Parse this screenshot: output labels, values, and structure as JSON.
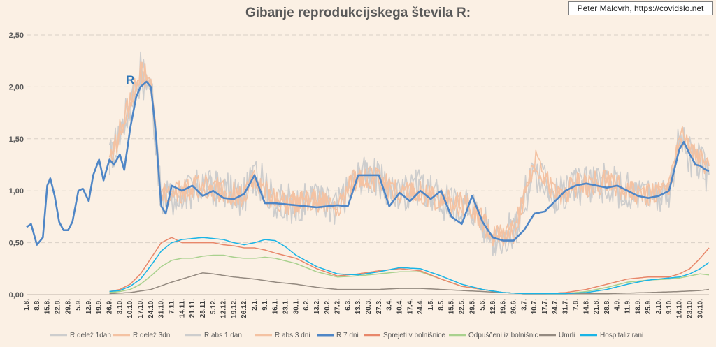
{
  "title": "Gibanje reprodukcijskega števila R:",
  "credit": "Peter Malovrh, https://covidslo.net",
  "annotation": "R",
  "colors": {
    "background": "#fbf0e4",
    "grid": "#d9d0c6",
    "r_delez_1dan": "#cdcdcd",
    "r_delez_3dni": "#f4c2a2",
    "r_abs_1dan": "#cdcdcd",
    "r_abs_3dni": "#f4c2a2",
    "r_7dni": "#4f86c6",
    "sprejeti": "#e8876a",
    "odpusceni": "#a9d18e",
    "umrli": "#948a80",
    "hospitalizirani": "#19b4e6"
  },
  "chart_data": {
    "type": "line",
    "title": "Gibanje reprodukcijskega števila R:",
    "ylim": [
      0,
      2.5
    ],
    "y_ticks": [
      "0,00",
      "0,50",
      "1,00",
      "1,50",
      "2,00",
      "2,50"
    ],
    "x_start": "2020-08-01",
    "x_end": "2021-11-05",
    "x_tick_labels": [
      "1.8.",
      "8.8.",
      "15.8.",
      "22.8.",
      "29.8.",
      "5.9.",
      "12.9.",
      "19.9.",
      "26.9.",
      "3.10.",
      "10.10.",
      "17.10.",
      "24.10.",
      "31.10.",
      "7.11.",
      "14.11.",
      "21.11.",
      "28.11.",
      "5.12.",
      "12.12.",
      "19.12.",
      "26.12.",
      "2.1.",
      "9.1.",
      "16.1.",
      "23.1.",
      "30.1.",
      "6.2.",
      "13.2.",
      "20.2.",
      "27.2.",
      "6.3.",
      "13.3.",
      "20.3.",
      "27.3.",
      "3.4.",
      "10.4.",
      "17.4.",
      "24.4.",
      "1.5.",
      "8.5.",
      "15.5.",
      "22.5.",
      "29.5.",
      "5.6.",
      "12.6.",
      "19.6.",
      "26.6.",
      "3.7.",
      "10.7.",
      "17.7.",
      "24.7.",
      "31.7.",
      "7.8.",
      "14.8.",
      "21.8.",
      "28.8.",
      "4.9.",
      "11.9.",
      "18.9.",
      "25.9.",
      "2.10.",
      "9.10.",
      "16.10.",
      "23.10.",
      "30.10."
    ],
    "grid": true,
    "legend_position": "bottom",
    "series": [
      {
        "name": "R delež 1dan",
        "key": "r_delez_1dan",
        "noisy": true,
        "amp": 0.18,
        "start": "2020-09-26",
        "x": [
          "2020-09-26",
          "2020-10-10",
          "2020-10-17",
          "2020-10-24",
          "2020-10-31",
          "2020-11-28",
          "2020-12-26",
          "2021-01-02",
          "2021-01-16",
          "2021-01-30",
          "2021-02-13",
          "2021-02-27",
          "2021-03-13",
          "2021-03-27",
          "2021-04-10",
          "2021-04-24",
          "2021-05-08",
          "2021-05-29",
          "2021-06-12",
          "2021-06-26",
          "2021-07-10",
          "2021-07-24",
          "2021-08-07",
          "2021-08-28",
          "2021-09-11",
          "2021-09-25",
          "2021-10-09",
          "2021-10-16",
          "2021-10-23",
          "2021-10-30",
          "2021-11-05"
        ],
        "y": [
          1.3,
          1.85,
          2.2,
          2.0,
          0.9,
          1.05,
          0.95,
          1.15,
          0.9,
          0.88,
          0.92,
          0.85,
          1.15,
          1.1,
          0.95,
          1.05,
          0.9,
          0.85,
          0.55,
          0.6,
          1.2,
          0.95,
          1.05,
          1.08,
          1.0,
          0.95,
          1.0,
          1.5,
          1.35,
          1.3,
          1.1
        ]
      },
      {
        "name": "R delež 3dni",
        "key": "r_delez_3dni",
        "noisy": true,
        "amp": 0.12,
        "start": "2020-09-26",
        "x": [
          "2020-09-26",
          "2020-10-10",
          "2020-10-17",
          "2020-10-24",
          "2020-10-31",
          "2020-11-28",
          "2020-12-26",
          "2021-01-02",
          "2021-01-16",
          "2021-01-30",
          "2021-02-13",
          "2021-02-27",
          "2021-03-13",
          "2021-03-27",
          "2021-04-10",
          "2021-04-24",
          "2021-05-08",
          "2021-05-29",
          "2021-06-12",
          "2021-06-26",
          "2021-07-10",
          "2021-07-24",
          "2021-08-07",
          "2021-08-28",
          "2021-09-11",
          "2021-09-25",
          "2021-10-09",
          "2021-10-16",
          "2021-10-23",
          "2021-10-30",
          "2021-11-05"
        ],
        "y": [
          1.3,
          1.85,
          2.2,
          2.05,
          0.95,
          1.05,
          0.95,
          1.1,
          0.9,
          0.88,
          0.9,
          0.85,
          1.15,
          1.1,
          0.95,
          1.0,
          0.9,
          0.85,
          0.55,
          0.6,
          1.3,
          0.95,
          1.05,
          1.08,
          1.0,
          0.95,
          1.0,
          1.55,
          1.4,
          1.3,
          1.2
        ]
      },
      {
        "name": "R abs 1 dan",
        "key": "r_abs_1dan",
        "noisy": true,
        "amp": 0.2,
        "start": "2020-09-26",
        "x": [
          "2020-09-26",
          "2020-10-10",
          "2020-10-17",
          "2020-10-24",
          "2020-10-31",
          "2020-11-28",
          "2020-12-26",
          "2021-01-02",
          "2021-01-16",
          "2021-01-30",
          "2021-02-13",
          "2021-02-27",
          "2021-03-13",
          "2021-03-27",
          "2021-04-10",
          "2021-04-24",
          "2021-05-08",
          "2021-05-29",
          "2021-06-12",
          "2021-06-26",
          "2021-07-10",
          "2021-07-24",
          "2021-08-07",
          "2021-08-28",
          "2021-09-11",
          "2021-09-25",
          "2021-10-09",
          "2021-10-16",
          "2021-10-23",
          "2021-10-30",
          "2021-11-05"
        ],
        "y": [
          1.3,
          1.8,
          2.1,
          2.0,
          0.9,
          1.05,
          0.95,
          1.2,
          0.9,
          0.88,
          0.92,
          0.85,
          1.15,
          1.1,
          0.95,
          1.05,
          0.9,
          0.85,
          0.55,
          0.6,
          1.25,
          0.95,
          1.05,
          1.08,
          1.0,
          0.95,
          1.0,
          1.45,
          1.3,
          1.3,
          1.1
        ]
      },
      {
        "name": "R abs 3 dni",
        "key": "r_abs_3dni",
        "noisy": true,
        "amp": 0.12,
        "start": "2020-09-26",
        "x": [
          "2020-09-26",
          "2020-10-10",
          "2020-10-17",
          "2020-10-24",
          "2020-10-31",
          "2020-11-28",
          "2020-12-26",
          "2021-01-02",
          "2021-01-16",
          "2021-01-30",
          "2021-02-13",
          "2021-02-27",
          "2021-03-13",
          "2021-03-27",
          "2021-04-10",
          "2021-04-24",
          "2021-05-08",
          "2021-05-29",
          "2021-06-12",
          "2021-06-26",
          "2021-07-10",
          "2021-07-24",
          "2021-08-07",
          "2021-08-28",
          "2021-09-11",
          "2021-09-25",
          "2021-10-09",
          "2021-10-16",
          "2021-10-23",
          "2021-10-30",
          "2021-11-05"
        ],
        "y": [
          1.3,
          1.8,
          2.15,
          2.0,
          0.95,
          1.05,
          0.95,
          1.1,
          0.9,
          0.88,
          0.9,
          0.85,
          1.15,
          1.1,
          0.95,
          1.0,
          0.9,
          0.85,
          0.55,
          0.6,
          1.3,
          0.95,
          1.05,
          1.08,
          1.0,
          0.95,
          1.0,
          1.5,
          1.4,
          1.3,
          1.2
        ]
      },
      {
        "name": "R 7 dni",
        "key": "r_7dni",
        "noisy": false,
        "x": [
          "2020-08-01",
          "2020-08-04",
          "2020-08-08",
          "2020-08-12",
          "2020-08-15",
          "2020-08-17",
          "2020-08-20",
          "2020-08-23",
          "2020-08-26",
          "2020-08-29",
          "2020-09-01",
          "2020-09-05",
          "2020-09-08",
          "2020-09-12",
          "2020-09-15",
          "2020-09-19",
          "2020-09-22",
          "2020-09-26",
          "2020-09-29",
          "2020-10-03",
          "2020-10-06",
          "2020-10-10",
          "2020-10-14",
          "2020-10-17",
          "2020-10-21",
          "2020-10-24",
          "2020-10-27",
          "2020-10-31",
          "2020-11-03",
          "2020-11-07",
          "2020-11-14",
          "2020-11-21",
          "2020-11-28",
          "2020-12-05",
          "2020-12-12",
          "2020-12-19",
          "2020-12-26",
          "2021-01-02",
          "2021-01-09",
          "2021-01-16",
          "2021-01-30",
          "2021-02-13",
          "2021-02-27",
          "2021-03-06",
          "2021-03-13",
          "2021-03-27",
          "2021-04-03",
          "2021-04-10",
          "2021-04-17",
          "2021-04-24",
          "2021-05-01",
          "2021-05-08",
          "2021-05-15",
          "2021-05-22",
          "2021-05-29",
          "2021-06-05",
          "2021-06-12",
          "2021-06-19",
          "2021-06-26",
          "2021-07-03",
          "2021-07-10",
          "2021-07-17",
          "2021-07-24",
          "2021-07-31",
          "2021-08-07",
          "2021-08-14",
          "2021-08-21",
          "2021-08-28",
          "2021-09-04",
          "2021-09-11",
          "2021-09-18",
          "2021-09-25",
          "2021-10-02",
          "2021-10-09",
          "2021-10-16",
          "2021-10-19",
          "2021-10-23",
          "2021-10-27",
          "2021-10-30",
          "2021-11-03",
          "2021-11-05"
        ],
        "y": [
          0.65,
          0.68,
          0.48,
          0.55,
          1.05,
          1.12,
          0.95,
          0.7,
          0.62,
          0.62,
          0.7,
          1.0,
          1.02,
          0.9,
          1.15,
          1.3,
          1.1,
          1.3,
          1.25,
          1.35,
          1.2,
          1.6,
          1.9,
          2.0,
          2.05,
          2.0,
          1.6,
          0.85,
          0.78,
          1.05,
          1.0,
          1.05,
          0.95,
          1.0,
          0.93,
          0.92,
          0.97,
          1.15,
          0.88,
          0.88,
          0.86,
          0.84,
          0.86,
          0.85,
          1.15,
          1.15,
          0.85,
          0.98,
          0.9,
          1.0,
          0.92,
          1.0,
          0.75,
          0.68,
          0.95,
          0.7,
          0.55,
          0.52,
          0.52,
          0.62,
          0.78,
          0.8,
          0.9,
          1.0,
          1.05,
          1.07,
          1.05,
          1.03,
          1.05,
          1.0,
          0.95,
          0.93,
          0.95,
          1.0,
          1.4,
          1.47,
          1.35,
          1.25,
          1.24,
          1.2,
          1.19
        ]
      },
      {
        "name": "Sprejeti v bolnišnice",
        "key": "sprejeti",
        "noisy": false,
        "x": [
          "2020-09-26",
          "2020-10-03",
          "2020-10-10",
          "2020-10-17",
          "2020-10-24",
          "2020-10-31",
          "2020-11-07",
          "2020-11-14",
          "2020-11-21",
          "2020-11-28",
          "2020-12-05",
          "2020-12-12",
          "2020-12-19",
          "2020-12-26",
          "2021-01-02",
          "2021-01-09",
          "2021-01-16",
          "2021-01-30",
          "2021-02-13",
          "2021-02-27",
          "2021-03-13",
          "2021-03-27",
          "2021-04-10",
          "2021-04-24",
          "2021-05-08",
          "2021-05-22",
          "2021-06-05",
          "2021-06-19",
          "2021-07-03",
          "2021-07-17",
          "2021-07-31",
          "2021-08-14",
          "2021-08-28",
          "2021-09-11",
          "2021-09-25",
          "2021-10-09",
          "2021-10-16",
          "2021-10-23",
          "2021-10-30",
          "2021-11-05"
        ],
        "y": [
          0.03,
          0.05,
          0.1,
          0.2,
          0.35,
          0.5,
          0.55,
          0.5,
          0.5,
          0.5,
          0.5,
          0.48,
          0.47,
          0.45,
          0.45,
          0.43,
          0.4,
          0.35,
          0.25,
          0.18,
          0.2,
          0.23,
          0.25,
          0.23,
          0.15,
          0.08,
          0.05,
          0.02,
          0.01,
          0.01,
          0.02,
          0.05,
          0.1,
          0.15,
          0.17,
          0.17,
          0.2,
          0.25,
          0.35,
          0.45
        ]
      },
      {
        "name": "Odpuščeni iz bolnišnic",
        "key": "odpusceni",
        "noisy": false,
        "x": [
          "2020-09-26",
          "2020-10-03",
          "2020-10-10",
          "2020-10-17",
          "2020-10-24",
          "2020-10-31",
          "2020-11-07",
          "2020-11-14",
          "2020-11-21",
          "2020-11-28",
          "2020-12-05",
          "2020-12-12",
          "2020-12-19",
          "2020-12-26",
          "2021-01-02",
          "2021-01-09",
          "2021-01-16",
          "2021-01-30",
          "2021-02-13",
          "2021-02-27",
          "2021-03-13",
          "2021-03-27",
          "2021-04-10",
          "2021-04-24",
          "2021-05-08",
          "2021-05-22",
          "2021-06-05",
          "2021-06-19",
          "2021-07-03",
          "2021-07-17",
          "2021-07-31",
          "2021-08-14",
          "2021-08-28",
          "2021-09-11",
          "2021-09-25",
          "2021-10-09",
          "2021-10-16",
          "2021-10-23",
          "2021-10-30",
          "2021-11-05"
        ],
        "y": [
          0.02,
          0.03,
          0.05,
          0.1,
          0.18,
          0.27,
          0.33,
          0.35,
          0.35,
          0.37,
          0.38,
          0.38,
          0.36,
          0.35,
          0.35,
          0.36,
          0.35,
          0.3,
          0.22,
          0.17,
          0.18,
          0.2,
          0.22,
          0.22,
          0.15,
          0.08,
          0.05,
          0.02,
          0.01,
          0.01,
          0.01,
          0.03,
          0.07,
          0.12,
          0.14,
          0.15,
          0.16,
          0.18,
          0.2,
          0.19
        ]
      },
      {
        "name": "Umrli",
        "key": "umrli",
        "noisy": false,
        "x": [
          "2020-09-26",
          "2020-10-10",
          "2020-10-24",
          "2020-11-07",
          "2020-11-21",
          "2020-11-28",
          "2020-12-05",
          "2020-12-19",
          "2021-01-02",
          "2021-01-16",
          "2021-01-30",
          "2021-02-13",
          "2021-02-27",
          "2021-03-13",
          "2021-03-27",
          "2021-04-10",
          "2021-04-24",
          "2021-05-08",
          "2021-05-22",
          "2021-06-05",
          "2021-06-19",
          "2021-07-03",
          "2021-07-31",
          "2021-08-28",
          "2021-09-25",
          "2021-10-16",
          "2021-10-30",
          "2021-11-05"
        ],
        "y": [
          0.01,
          0.02,
          0.05,
          0.12,
          0.18,
          0.21,
          0.2,
          0.17,
          0.15,
          0.12,
          0.1,
          0.07,
          0.05,
          0.05,
          0.05,
          0.06,
          0.06,
          0.05,
          0.04,
          0.03,
          0.02,
          0.01,
          0.01,
          0.01,
          0.02,
          0.03,
          0.04,
          0.05
        ]
      },
      {
        "name": "Hospitalizirani",
        "key": "hospitalizirani",
        "noisy": false,
        "x": [
          "2020-09-26",
          "2020-10-03",
          "2020-10-10",
          "2020-10-17",
          "2020-10-24",
          "2020-10-31",
          "2020-11-07",
          "2020-11-14",
          "2020-11-21",
          "2020-11-28",
          "2020-12-05",
          "2020-12-12",
          "2020-12-19",
          "2020-12-26",
          "2021-01-02",
          "2021-01-09",
          "2021-01-16",
          "2021-01-23",
          "2021-01-30",
          "2021-02-13",
          "2021-02-27",
          "2021-03-13",
          "2021-03-27",
          "2021-04-10",
          "2021-04-24",
          "2021-05-08",
          "2021-05-22",
          "2021-06-05",
          "2021-06-19",
          "2021-07-03",
          "2021-07-17",
          "2021-07-31",
          "2021-08-14",
          "2021-08-28",
          "2021-09-11",
          "2021-09-25",
          "2021-10-09",
          "2021-10-16",
          "2021-10-23",
          "2021-10-30",
          "2021-11-05"
        ],
        "y": [
          0.03,
          0.04,
          0.08,
          0.15,
          0.28,
          0.42,
          0.5,
          0.53,
          0.54,
          0.55,
          0.54,
          0.53,
          0.5,
          0.48,
          0.5,
          0.53,
          0.52,
          0.46,
          0.38,
          0.27,
          0.2,
          0.19,
          0.22,
          0.26,
          0.25,
          0.18,
          0.1,
          0.05,
          0.02,
          0.01,
          0.01,
          0.01,
          0.02,
          0.05,
          0.1,
          0.14,
          0.16,
          0.17,
          0.2,
          0.25,
          0.31
        ]
      }
    ]
  }
}
